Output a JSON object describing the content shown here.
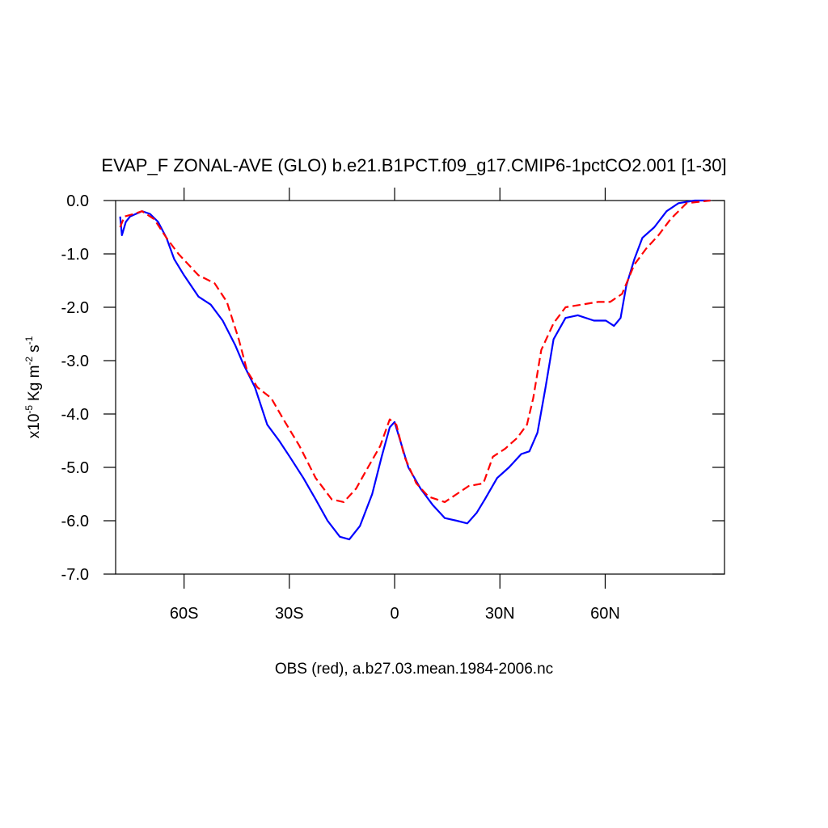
{
  "chart_data": {
    "type": "line",
    "title": "EVAP_F ZONAL-AVE (GLO) b.e21.B1PCT.f09_g17.CMIP6-1pctCO2.001 [1-30]",
    "xlabel": "OBS (red), a.b27.03.mean.1984-2006.nc",
    "ylabel": [
      "x10",
      "-5",
      "Kg m",
      "-2",
      "s",
      "-1"
    ],
    "xlim": [
      -79.5,
      94
    ],
    "xticks": [
      {
        "value": -60,
        "label": "60S"
      },
      {
        "value": -30,
        "label": "30S"
      },
      0,
      {
        "value": 30,
        "label": "30N"
      },
      {
        "value": 60,
        "label": "60N"
      }
    ],
    "ylim": [
      -7,
      0
    ],
    "yticks": [
      {
        "value": 0,
        "label": "0.0"
      },
      {
        "value": -1,
        "label": "-1.0"
      },
      {
        "value": -2,
        "label": "-2.0"
      },
      {
        "value": -3,
        "label": "-3.0"
      },
      {
        "value": -4,
        "label": "-4.0"
      },
      {
        "value": -5,
        "label": "-5.0"
      },
      {
        "value": -6,
        "label": "-6.0"
      },
      {
        "value": -7,
        "label": "-7.0"
      }
    ],
    "series": [
      {
        "color": "#0000ff",
        "dash": false,
        "x": [
          -78.2,
          -77.7,
          -76.6,
          -75.4,
          -72,
          -69.7,
          -67.4,
          -65,
          -62.8,
          -60,
          -55.9,
          -52.4,
          -49,
          -45.5,
          -43.2,
          -39.8,
          -36.3,
          -32.9,
          -29.9,
          -26,
          -22.5,
          -19.1,
          -15.6,
          -12.9,
          -9.9,
          -6.4,
          -3.7,
          -1.4,
          0,
          1.6,
          3.9,
          7.4,
          10.8,
          14.3,
          17.7,
          20.7,
          23.4,
          25.7,
          29.2,
          32.6,
          36.1,
          38.4,
          40.7,
          43,
          45.3,
          48.7,
          52.2,
          56.8,
          60.2,
          62.5,
          64.4,
          66,
          68.3,
          70.6,
          74,
          77.5,
          80.9,
          85.5,
          90
        ],
        "values": [
          -0.3,
          -0.65,
          -0.4,
          -0.3,
          -0.2,
          -0.25,
          -0.4,
          -0.7,
          -1.1,
          -1.4,
          -1.8,
          -1.95,
          -2.25,
          -2.7,
          -3.05,
          -3.5,
          -4.2,
          -4.5,
          -4.8,
          -5.2,
          -5.6,
          -6.0,
          -6.3,
          -6.35,
          -6.1,
          -5.5,
          -4.8,
          -4.25,
          -4.15,
          -4.5,
          -5.0,
          -5.4,
          -5.7,
          -5.95,
          -6.0,
          -6.05,
          -5.85,
          -5.6,
          -5.2,
          -5.0,
          -4.75,
          -4.7,
          -4.35,
          -3.5,
          -2.6,
          -2.2,
          -2.15,
          -2.25,
          -2.25,
          -2.35,
          -2.2,
          -1.6,
          -1.1,
          -0.7,
          -0.5,
          -0.2,
          -0.05,
          0,
          0
        ]
      },
      {
        "color": "#ff0000",
        "dash": true,
        "x": [
          -78.2,
          -77,
          -74.3,
          -72,
          -68.5,
          -65,
          -61.6,
          -55.9,
          -51.3,
          -47.8,
          -44.4,
          -42,
          -39.1,
          -35.2,
          -31.7,
          -27.1,
          -22.5,
          -17.9,
          -14.5,
          -11,
          -7.6,
          -4.1,
          -1.4,
          0.5,
          2.8,
          6.2,
          9.7,
          14.3,
          17.7,
          21.1,
          25.3,
          28,
          31.5,
          34.9,
          37.7,
          39.5,
          41.8,
          45.3,
          48.7,
          53.3,
          57.9,
          61.4,
          64.8,
          68.3,
          71.7,
          75.2,
          78.6,
          83.2,
          90
        ],
        "values": [
          -0.5,
          -0.3,
          -0.25,
          -0.2,
          -0.35,
          -0.7,
          -1.0,
          -1.4,
          -1.55,
          -1.9,
          -2.6,
          -3.2,
          -3.5,
          -3.7,
          -4.1,
          -4.6,
          -5.2,
          -5.6,
          -5.65,
          -5.4,
          -5.0,
          -4.6,
          -4.1,
          -4.2,
          -4.8,
          -5.3,
          -5.55,
          -5.65,
          -5.5,
          -5.35,
          -5.3,
          -4.8,
          -4.65,
          -4.45,
          -4.2,
          -3.7,
          -2.8,
          -2.3,
          -2.0,
          -1.95,
          -1.9,
          -1.9,
          -1.75,
          -1.2,
          -0.9,
          -0.65,
          -0.35,
          -0.05,
          0
        ]
      }
    ]
  }
}
